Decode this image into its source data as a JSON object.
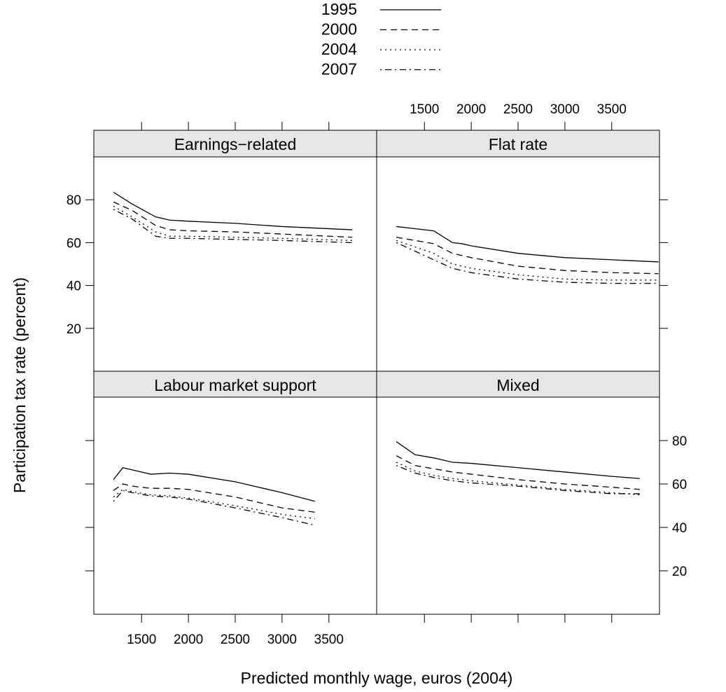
{
  "chart_data": [
    {
      "type": "line",
      "title": "Earnings−related",
      "xlabel": "Predicted monthly wage, euros (2004)",
      "ylabel": "Participation tax rate (percent)",
      "x": [
        1200,
        1400,
        1650,
        1800,
        2000,
        2500,
        3000,
        3750
      ],
      "series": [
        {
          "name": "1995",
          "color": "#000000",
          "linestyle": "solid",
          "values": [
            83.5,
            78,
            72,
            70.5,
            70,
            69,
            67.5,
            66
          ]
        },
        {
          "name": "2000",
          "color": "#000000",
          "linestyle": "dashed",
          "values": [
            79,
            75,
            68,
            66,
            65.5,
            65,
            64,
            62.5
          ]
        },
        {
          "name": "2004",
          "color": "#000000",
          "linestyle": "dotted",
          "values": [
            77,
            72,
            65,
            63,
            63,
            62.5,
            62,
            61
          ]
        },
        {
          "name": "2007",
          "color": "#000000",
          "linestyle": "dotdash",
          "values": [
            75.5,
            71,
            63,
            62,
            62,
            61.5,
            61,
            60
          ]
        }
      ],
      "xlim": [
        990,
        4010
      ],
      "xticks": [
        1500,
        2000,
        2500,
        3000,
        3500
      ],
      "ylim": [
        0,
        100
      ],
      "yticks": [
        20,
        40,
        60,
        80
      ]
    },
    {
      "type": "line",
      "title": "Flat rate",
      "x": [
        1200,
        1400,
        1600,
        1800,
        1900,
        2000,
        2500,
        3000,
        3500,
        4000
      ],
      "series": [
        {
          "name": "1995",
          "color": "#000000",
          "linestyle": "solid",
          "values": [
            67.5,
            66.5,
            65.5,
            60,
            59.5,
            58.5,
            55,
            53,
            52,
            51
          ]
        },
        {
          "name": "2000",
          "color": "#000000",
          "linestyle": "dashed",
          "values": [
            62.5,
            61,
            59.5,
            55,
            54,
            53,
            49,
            47,
            46,
            45.5
          ]
        },
        {
          "name": "2004",
          "color": "#000000",
          "linestyle": "dotted",
          "values": [
            61,
            58,
            55,
            50,
            49,
            48,
            45,
            43,
            42.5,
            42.5
          ]
        },
        {
          "name": "2007",
          "color": "#000000",
          "linestyle": "dotdash",
          "values": [
            60,
            56,
            52,
            48,
            47,
            46,
            43,
            41.5,
            41,
            41
          ]
        }
      ],
      "xlim": [
        990,
        4010
      ],
      "xticks": [
        1500,
        2000,
        2500,
        3000,
        3500
      ],
      "ylim": [
        0,
        100
      ],
      "yticks": [
        20,
        40,
        60,
        80
      ]
    },
    {
      "type": "line",
      "title": "Labour market support",
      "x": [
        1200,
        1300,
        1400,
        1600,
        1800,
        2000,
        2500,
        3000,
        3350
      ],
      "series": [
        {
          "name": "1995",
          "color": "#000000",
          "linestyle": "solid",
          "values": [
            62,
            67.5,
            66.5,
            64.5,
            65,
            64.5,
            61,
            56,
            52
          ]
        },
        {
          "name": "2000",
          "color": "#000000",
          "linestyle": "dashed",
          "values": [
            57,
            60,
            59,
            58,
            58,
            57.5,
            54,
            49,
            47
          ]
        },
        {
          "name": "2004",
          "color": "#000000",
          "linestyle": "dotted",
          "values": [
            54,
            57.5,
            56.5,
            55,
            54.5,
            53.5,
            50,
            46,
            44
          ]
        },
        {
          "name": "2007",
          "color": "#000000",
          "linestyle": "dotdash",
          "values": [
            52,
            57,
            56,
            54.5,
            54,
            53,
            49,
            44.5,
            41
          ]
        }
      ],
      "xlim": [
        990,
        4010
      ],
      "xticks": [
        1500,
        2000,
        2500,
        3000,
        3500
      ],
      "ylim": [
        0,
        100
      ],
      "yticks": [
        20,
        40,
        60,
        80
      ]
    },
    {
      "type": "line",
      "title": "Mixed",
      "x": [
        1200,
        1400,
        1600,
        1800,
        2000,
        2500,
        3000,
        3500,
        3800
      ],
      "series": [
        {
          "name": "1995",
          "color": "#000000",
          "linestyle": "solid",
          "values": [
            79.5,
            73.5,
            72,
            70,
            69.5,
            67.5,
            65.5,
            63.5,
            62.5
          ]
        },
        {
          "name": "2000",
          "color": "#000000",
          "linestyle": "dashed",
          "values": [
            73,
            68.5,
            67,
            65.5,
            64.5,
            62,
            60,
            58.5,
            57.5
          ]
        },
        {
          "name": "2004",
          "color": "#000000",
          "linestyle": "dotted",
          "values": [
            70,
            66,
            64,
            62.5,
            61.5,
            59.5,
            57.5,
            56,
            55
          ]
        },
        {
          "name": "2007",
          "color": "#000000",
          "linestyle": "dotdash",
          "values": [
            68.5,
            65,
            63,
            61.5,
            60.5,
            59,
            57,
            55.5,
            55.5
          ]
        }
      ],
      "xlim": [
        990,
        4010
      ],
      "xticks": [
        1500,
        2000,
        2500,
        3000,
        3500
      ],
      "ylim": [
        0,
        100
      ],
      "yticks": [
        20,
        40,
        60,
        80
      ]
    }
  ]
}
